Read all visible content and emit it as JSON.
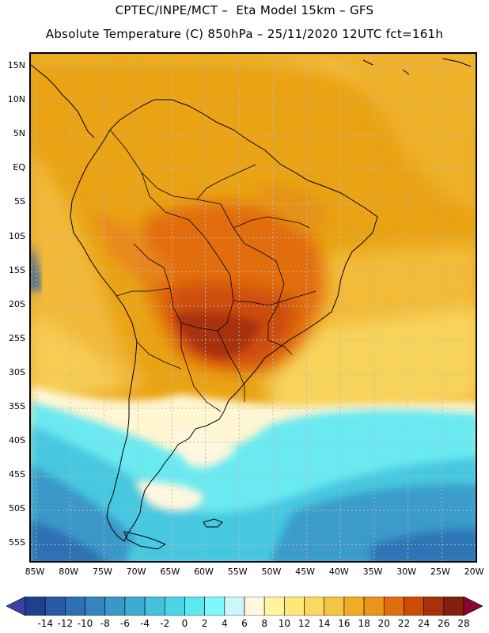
{
  "header": {
    "title_line1": "CPTEC/INPE/MCT –  Eta Model 15km – GFS",
    "title_line2": "Absolute Temperature (C) 850hPa – 25/11/2020 12UTC fct=161h"
  },
  "map": {
    "lat_labels": [
      "15N",
      "10N",
      "5N",
      "EQ",
      "5S",
      "10S",
      "15S",
      "20S",
      "25S",
      "30S",
      "35S",
      "40S",
      "45S",
      "50S",
      "55S"
    ],
    "lon_labels": [
      "85W",
      "80W",
      "75W",
      "70W",
      "65W",
      "60W",
      "55W",
      "50W",
      "45W",
      "40W",
      "35W",
      "30W",
      "25W",
      "20W"
    ],
    "land_outline_color": "#000000",
    "gridline_color": "#b9b9b9"
  },
  "colorbar": {
    "labels": [
      "-14",
      "-12",
      "-10",
      "-8",
      "-6",
      "-4",
      "-2",
      "0",
      "2",
      "4",
      "6",
      "8",
      "10",
      "12",
      "14",
      "16",
      "18",
      "20",
      "22",
      "24",
      "26",
      "28"
    ],
    "colors": [
      "#1f3f8f",
      "#2a5aa5",
      "#2f6fb3",
      "#3584bf",
      "#3a98c8",
      "#3eabd2",
      "#45c0dd",
      "#4dd4e6",
      "#5de8ef",
      "#7ff8fa",
      "#cdf6fa",
      "#fff7de",
      "#fff3a0",
      "#ffe87a",
      "#fbd862",
      "#f4c444",
      "#eead24",
      "#e9941a",
      "#e26d0c",
      "#cd4b08",
      "#a8300a",
      "#82200c"
    ],
    "low_arrow_color": "#3b3fa6",
    "high_arrow_color": "#8a0630"
  }
}
